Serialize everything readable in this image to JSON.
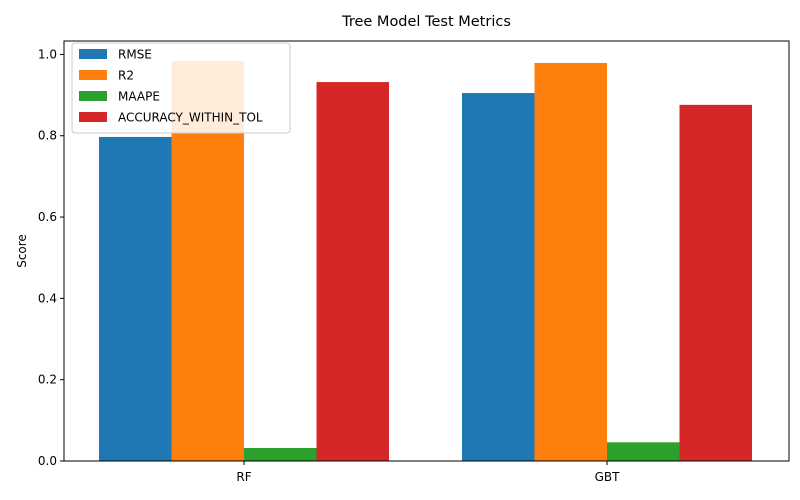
{
  "chart_data": {
    "type": "bar",
    "title": "Tree Model Test Metrics",
    "xlabel": "",
    "ylabel": "Score",
    "categories": [
      "RF",
      "GBT"
    ],
    "series": [
      {
        "name": "RMSE",
        "color": "#1f77b4",
        "values": [
          0.797,
          0.905
        ]
      },
      {
        "name": "R2",
        "color": "#ff7f0e",
        "values": [
          0.984,
          0.979
        ]
      },
      {
        "name": "MAAPE",
        "color": "#2ca02c",
        "values": [
          0.032,
          0.046
        ]
      },
      {
        "name": "ACCURACY_WITHIN_TOL",
        "color": "#d62728",
        "values": [
          0.932,
          0.876
        ]
      }
    ],
    "ylim": [
      0,
      1.033
    ],
    "yticks": [
      0.0,
      0.2,
      0.4,
      0.6,
      0.8,
      1.0
    ],
    "ytick_labels": [
      "0.0",
      "0.2",
      "0.4",
      "0.6",
      "0.8",
      "1.0"
    ],
    "grid": false,
    "legend_position": "upper-left"
  }
}
